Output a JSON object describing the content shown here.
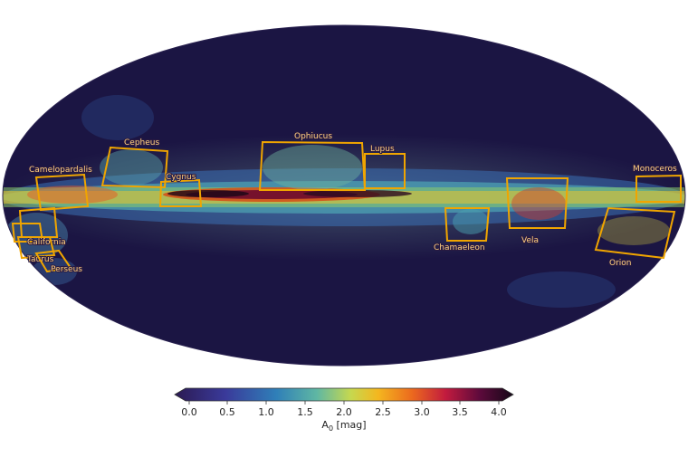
{
  "map": {
    "projection": "Mollweide all-sky",
    "background_color": "#1b1543",
    "box_color": "#f0a500",
    "regions": [
      {
        "name": "Cepheus"
      },
      {
        "name": "Ophiucus"
      },
      {
        "name": "Lupus"
      },
      {
        "name": "Camelopardalis"
      },
      {
        "name": "Cygnus"
      },
      {
        "name": "Monoceros"
      },
      {
        "name": "California"
      },
      {
        "name": "Taurus"
      },
      {
        "name": "Perseus"
      },
      {
        "name": "Chamaeleon"
      },
      {
        "name": "Vela"
      },
      {
        "name": "Orion"
      }
    ]
  },
  "colorbar": {
    "colormap": "spectral-like (dark purple → blue → green → yellow → orange → red → black)",
    "range": [
      0.0,
      4.0
    ],
    "ticks": [
      "0.0",
      "0.5",
      "1.0",
      "1.5",
      "2.0",
      "2.5",
      "3.0",
      "3.5",
      "4.0"
    ],
    "label_main": "A",
    "label_sub": "0",
    "label_unit": " [mag]",
    "extend": "both"
  }
}
